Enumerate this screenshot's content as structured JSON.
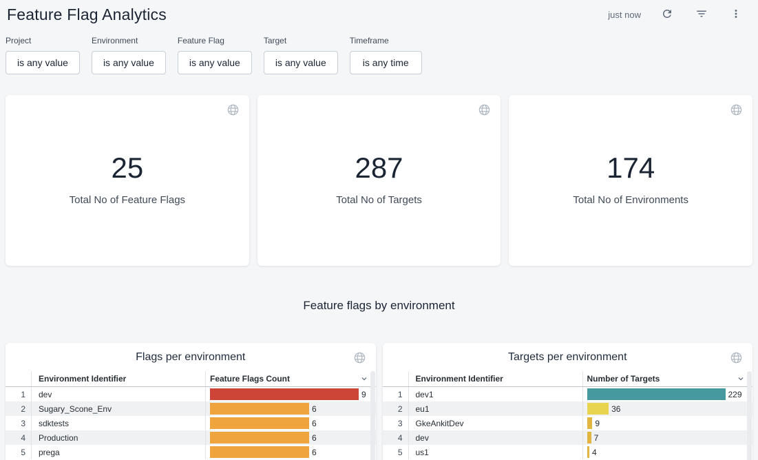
{
  "page": {
    "title": "Feature Flag Analytics",
    "last_refresh": "just now",
    "section_title": "Feature flags by environment",
    "background_color": "#f5f6f8",
    "text_color": "#1a2433"
  },
  "icons": {
    "refresh": "refresh-icon (circular arrow)",
    "filter": "filter-list-icon (stacked lines)",
    "menu": "kebab-menu-icon (three vertical dots)",
    "tile": "globe-icon",
    "sort": "chevron-down-icon"
  },
  "filters": [
    {
      "label": "Project",
      "value": "is any value"
    },
    {
      "label": "Environment",
      "value": "is any value"
    },
    {
      "label": "Feature Flag",
      "value": "is any value"
    },
    {
      "label": "Target",
      "value": "is any value"
    },
    {
      "label": "Timeframe",
      "value": "is any time"
    }
  ],
  "kpis": [
    {
      "value": "25",
      "label": "Total No of Feature Flags"
    },
    {
      "value": "287",
      "label": "Total No of Targets"
    },
    {
      "value": "174",
      "label": "Total No of Environments"
    }
  ],
  "chart_data": [
    {
      "type": "table",
      "title": "Flags per environment",
      "columns": [
        "Environment Identifier",
        "Feature Flags Count"
      ],
      "sort": {
        "column": "Feature Flags Count",
        "direction": "desc"
      },
      "rows": [
        {
          "rank": 1,
          "label": "dev",
          "value": 9,
          "color": "#cc4537"
        },
        {
          "rank": 2,
          "label": "Sugary_Scone_Env",
          "value": 6,
          "color": "#efa43e"
        },
        {
          "rank": 3,
          "label": "sdktests",
          "value": 6,
          "color": "#efa43e"
        },
        {
          "rank": 4,
          "label": "Production",
          "value": 6,
          "color": "#efa43e"
        },
        {
          "rank": 5,
          "label": "prega",
          "value": 6,
          "color": "#efa43e"
        }
      ]
    },
    {
      "type": "table",
      "title": "Targets per environment",
      "columns": [
        "Environment Identifier",
        "Number of Targets"
      ],
      "sort": {
        "column": "Number of Targets",
        "direction": "desc"
      },
      "rows": [
        {
          "rank": 1,
          "label": "dev1",
          "value": 229,
          "color": "#45999f"
        },
        {
          "rank": 2,
          "label": "eu1",
          "value": 36,
          "color": "#e9d44f"
        },
        {
          "rank": 3,
          "label": "GkeAnkitDev",
          "value": 9,
          "color": "#e2b540"
        },
        {
          "rank": 4,
          "label": "dev",
          "value": 7,
          "color": "#e2b540"
        },
        {
          "rank": 5,
          "label": "us1",
          "value": 4,
          "color": "#e2b540"
        }
      ]
    }
  ]
}
